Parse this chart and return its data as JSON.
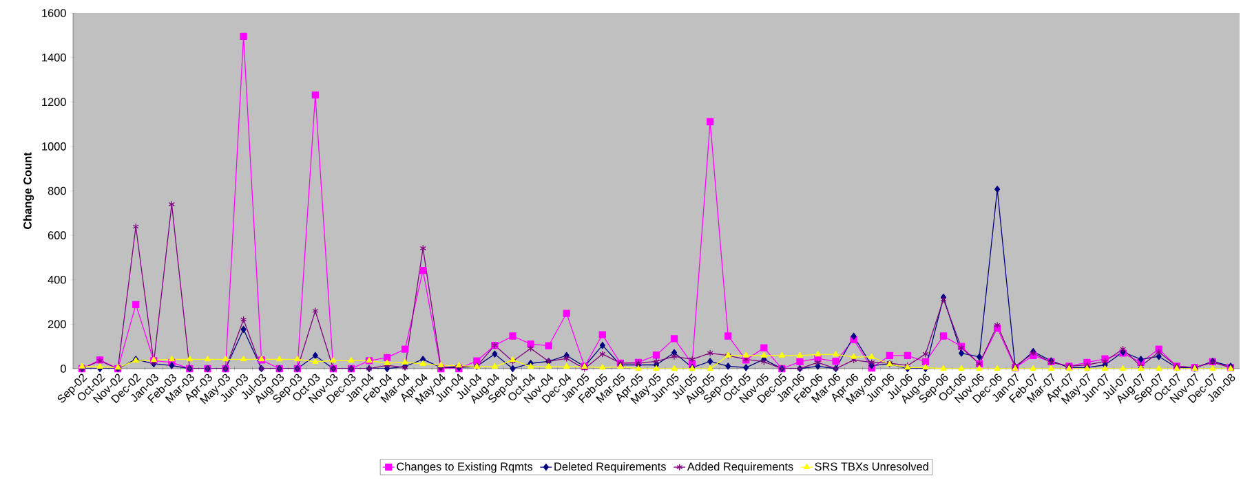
{
  "chart_data": {
    "type": "line",
    "ylabel": "Change Count",
    "categories": [
      "Sep-02",
      "Oct-02",
      "Nov-02",
      "Dec-02",
      "Jan-03",
      "Feb-03",
      "Mar-03",
      "Apr-03",
      "May-03",
      "Jun-03",
      "Jul-03",
      "Aug-03",
      "Sep-03",
      "Oct-03",
      "Nov-03",
      "Dec-03",
      "Jan-04",
      "Feb-04",
      "Mar-04",
      "Apr-04",
      "May-04",
      "Jun-04",
      "Jul-04",
      "Aug-04",
      "Sep-04",
      "Oct-04",
      "Nov-04",
      "Dec-04",
      "Jan-05",
      "Feb-05",
      "Mar-05",
      "Apr-05",
      "May-05",
      "Jun-05",
      "Jul-05",
      "Aug-05",
      "Sep-05",
      "Oct-05",
      "Nov-05",
      "Dec-05",
      "Jan-06",
      "Feb-06",
      "Mar-06",
      "Apr-06",
      "May-06",
      "Jun-06",
      "Jul-06",
      "Aug-06",
      "Sep-06",
      "Oct-06",
      "Nov-06",
      "Dec-06",
      "Jan-07",
      "Feb-07",
      "Mar-07",
      "Apr-07",
      "May-07",
      "Jun-07",
      "Jul-07",
      "Aug-07",
      "Sep-07",
      "Oct-07",
      "Nov-07",
      "Dec-07",
      "Jan-08"
    ],
    "series": [
      {
        "name": "Changes to Existing Rqmts",
        "color": "#ff00ff",
        "marker": "square",
        "values": [
          0,
          39,
          0,
          288,
          36,
          28,
          0,
          0,
          0,
          1495,
          39,
          0,
          0,
          1231,
          0,
          0,
          36,
          50,
          88,
          442,
          0,
          0,
          35,
          105,
          147,
          111,
          103,
          249,
          10,
          153,
          25,
          28,
          61,
          135,
          22,
          1111,
          147,
          39,
          94,
          0,
          31,
          46,
          33,
          131,
          3,
          59,
          59,
          31,
          147,
          100,
          22,
          182,
          5,
          59,
          31,
          11,
          28,
          44,
          70,
          28,
          88,
          11,
          5,
          31,
          5
        ]
      },
      {
        "name": "Deleted Requirements",
        "color": "#000080",
        "marker": "diamond",
        "values": [
          0,
          0,
          0,
          42,
          22,
          14,
          0,
          0,
          0,
          177,
          0,
          0,
          0,
          59,
          0,
          0,
          0,
          0,
          10,
          42,
          5,
          5,
          11,
          66,
          0,
          24,
          33,
          59,
          10,
          105,
          17,
          17,
          17,
          72,
          5,
          33,
          11,
          5,
          42,
          0,
          0,
          11,
          0,
          146,
          14,
          22,
          0,
          0,
          321,
          70,
          53,
          807,
          5,
          77,
          35,
          5,
          5,
          17,
          75,
          42,
          55,
          5,
          3,
          33,
          11
        ]
      },
      {
        "name": "Added Requirements",
        "color": "#800080",
        "marker": "cross",
        "values": [
          0,
          35,
          0,
          639,
          28,
          740,
          0,
          0,
          0,
          221,
          0,
          0,
          0,
          260,
          0,
          0,
          0,
          15,
          5,
          542,
          5,
          10,
          11,
          105,
          33,
          91,
          33,
          46,
          0,
          66,
          25,
          25,
          33,
          55,
          42,
          70,
          59,
          42,
          31,
          0,
          0,
          28,
          0,
          39,
          28,
          25,
          14,
          66,
          312,
          94,
          22,
          196,
          11,
          70,
          28,
          11,
          17,
          33,
          88,
          11,
          75,
          11,
          5,
          28,
          5
        ]
      },
      {
        "name": "SRS TBXs Unresolved",
        "color": "#ffff00",
        "marker": "triangle",
        "values": [
          10,
          9,
          5,
          36,
          39,
          42,
          42,
          42,
          42,
          42,
          42,
          42,
          42,
          31,
          36,
          36,
          36,
          25,
          28,
          22,
          15,
          14,
          9,
          9,
          39,
          9,
          9,
          9,
          9,
          5,
          9,
          0,
          0,
          0,
          0,
          0,
          59,
          59,
          59,
          59,
          59,
          64,
          64,
          53,
          53,
          20,
          5,
          5,
          0,
          0,
          0,
          0,
          0,
          0,
          0,
          0,
          0,
          0,
          0,
          0,
          0,
          0,
          0,
          0,
          0
        ]
      }
    ],
    "ylim": [
      0,
      1600
    ],
    "yticks": [
      0,
      200,
      400,
      600,
      800,
      1000,
      1200,
      1400,
      1600
    ],
    "legend": "bottom",
    "line_style": "solid"
  }
}
